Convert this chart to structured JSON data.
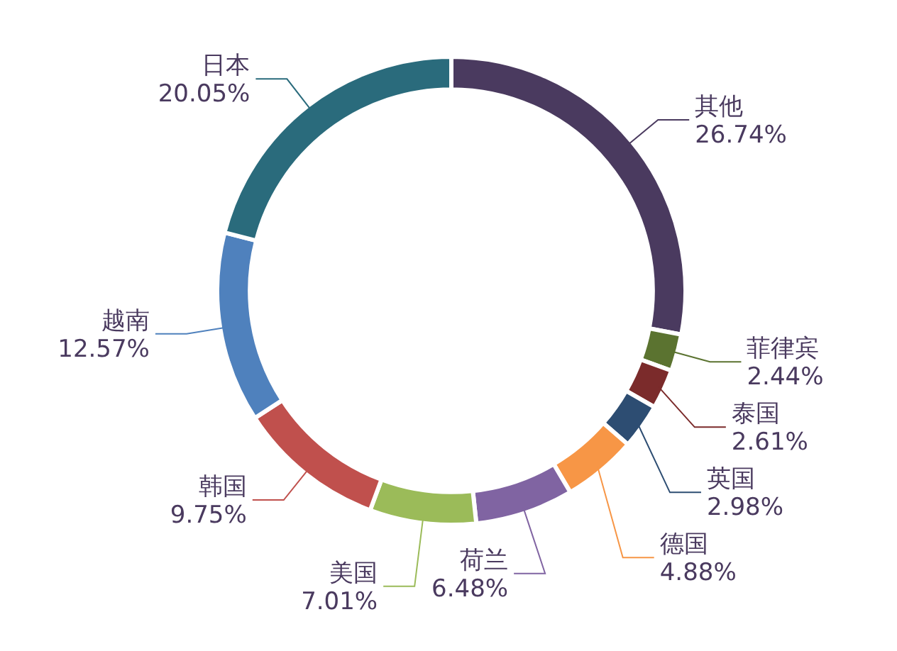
{
  "chart_data": {
    "type": "donut",
    "categories": [
      "其他",
      "菲律宾",
      "泰国",
      "英国",
      "德国",
      "荷兰",
      "美国",
      "韩国",
      "越南",
      "日本"
    ],
    "values": [
      26.74,
      2.44,
      2.61,
      2.98,
      4.88,
      6.48,
      7.01,
      9.75,
      12.57,
      20.05
    ],
    "value_labels": [
      "26.74%",
      "2.44%",
      "2.61%",
      "2.98%",
      "4.88%",
      "6.48%",
      "7.01%",
      "9.75%",
      "12.57%",
      "20.05%"
    ],
    "colors": [
      "#4a3a5f",
      "#5b7330",
      "#7b2b2b",
      "#2d4d72",
      "#f79646",
      "#8064a2",
      "#9bbb59",
      "#c0504d",
      "#4f81bd",
      "#2a6b7c"
    ]
  }
}
